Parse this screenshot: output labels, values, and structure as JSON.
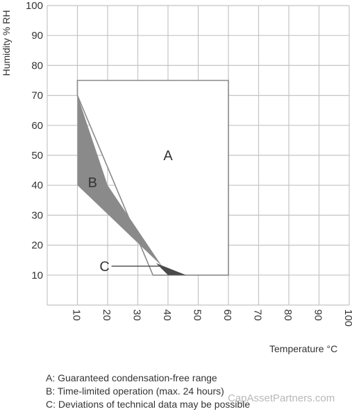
{
  "chart_data": {
    "type": "area",
    "xlabel": "Temperature °C",
    "ylabel": "Humidity % RH",
    "xlim": [
      0,
      100
    ],
    "ylim": [
      0,
      100
    ],
    "x_ticks": [
      10,
      20,
      30,
      40,
      50,
      60,
      70,
      80,
      90,
      100
    ],
    "y_ticks": [
      10,
      20,
      30,
      40,
      50,
      60,
      70,
      80,
      90,
      100
    ],
    "grid": true,
    "regions": [
      {
        "name": "A",
        "fill": "#ffffff",
        "points": [
          [
            10,
            75
          ],
          [
            60,
            75
          ],
          [
            60,
            10
          ],
          [
            35,
            10
          ],
          [
            10,
            70
          ]
        ]
      },
      {
        "name": "B",
        "fill": "#8a8a8a",
        "points": [
          [
            10,
            70
          ],
          [
            20,
            40
          ],
          [
            40,
            10
          ],
          [
            38,
            13
          ],
          [
            10,
            40
          ]
        ]
      },
      {
        "name": "C",
        "fill": "#4a4a4a",
        "points": [
          [
            36,
            14
          ],
          [
            46,
            10
          ],
          [
            40,
            10
          ]
        ]
      }
    ],
    "labels": [
      {
        "text": "A",
        "x": 40,
        "y": 50
      },
      {
        "text": "B",
        "x": 15,
        "y": 41
      },
      {
        "text": "C",
        "x": 19,
        "y": 13,
        "pointer_to": [
          38,
          13
        ]
      }
    ],
    "legend": [
      "A: Guaranteed condensation-free range",
      "B: Time-limited operation (max. 24 hours)",
      "C: Deviations of technical data may be possible"
    ]
  },
  "watermark": "CapAssetPartners.com"
}
